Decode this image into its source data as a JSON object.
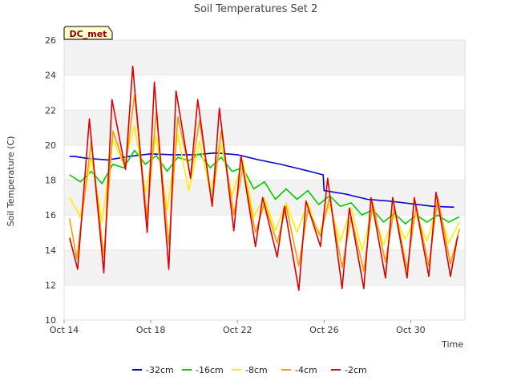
{
  "chart_data": {
    "type": "line",
    "title": "Soil Temperatures Set 2",
    "xlabel": "Time",
    "ylabel": "Soil Temperature (C)",
    "badge": "DC_met",
    "ylim": [
      10,
      26
    ],
    "xlim": [
      "2023-10-14",
      "2023-11-01T12:00"
    ],
    "y_ticks": [
      "10",
      "12",
      "14",
      "16",
      "18",
      "20",
      "22",
      "24",
      "26"
    ],
    "x_ticks": [
      {
        "date": "2023-10-14",
        "label": "Oct 14"
      },
      {
        "date": "2023-10-18",
        "label": "Oct 18"
      },
      {
        "date": "2023-10-22",
        "label": "Oct 22"
      },
      {
        "date": "2023-10-26",
        "label": "Oct 26"
      },
      {
        "date": "2023-10-30",
        "label": "Oct 30"
      }
    ],
    "legend_position": "bottom",
    "background_bands": true,
    "series": [
      {
        "name": "-32cm",
        "color": "#0000cc",
        "x": [
          "2023-10-14T06:00",
          "2023-10-14T12:00",
          "2023-10-15",
          "2023-10-16",
          "2023-10-17",
          "2023-10-18",
          "2023-10-19",
          "2023-10-20",
          "2023-10-21",
          "2023-10-22",
          "2023-10-23",
          "2023-10-24",
          "2023-10-25",
          "2023-10-25T23:00",
          "2023-10-26",
          "2023-10-27",
          "2023-10-28",
          "2023-10-29",
          "2023-10-30",
          "2023-10-31",
          "2023-11-01"
        ],
        "values": [
          19.35,
          19.35,
          19.25,
          19.15,
          19.35,
          19.5,
          19.45,
          19.45,
          19.55,
          19.45,
          19.15,
          18.9,
          18.6,
          18.3,
          17.4,
          17.2,
          16.9,
          16.8,
          16.65,
          16.5,
          16.45
        ]
      },
      {
        "name": "-16cm",
        "color": "#00cc00",
        "x": [
          "2023-10-14T06:00",
          "2023-10-14T18:00",
          "2023-10-15T06:00",
          "2023-10-15T18:00",
          "2023-10-16T06:00",
          "2023-10-16T18:00",
          "2023-10-17T06:00",
          "2023-10-17T18:00",
          "2023-10-18T06:00",
          "2023-10-18T18:00",
          "2023-10-19T06:00",
          "2023-10-19T18:00",
          "2023-10-20T06:00",
          "2023-10-20T18:00",
          "2023-10-21T06:00",
          "2023-10-21T18:00",
          "2023-10-22T06:00",
          "2023-10-22T18:00",
          "2023-10-23T06:00",
          "2023-10-23T18:00",
          "2023-10-24T06:00",
          "2023-10-24T18:00",
          "2023-10-25T06:00",
          "2023-10-25T18:00",
          "2023-10-26T06:00",
          "2023-10-26T18:00",
          "2023-10-27T06:00",
          "2023-10-27T18:00",
          "2023-10-28T06:00",
          "2023-10-28T18:00",
          "2023-10-29T06:00",
          "2023-10-29T18:00",
          "2023-10-30T06:00",
          "2023-10-30T18:00",
          "2023-10-31T06:00",
          "2023-10-31T18:00",
          "2023-11-01T06:00"
        ],
        "values": [
          18.3,
          17.9,
          18.5,
          17.8,
          18.9,
          18.7,
          19.7,
          18.9,
          19.4,
          18.5,
          19.3,
          19.1,
          19.5,
          18.7,
          19.3,
          18.5,
          18.7,
          17.5,
          17.9,
          16.9,
          17.5,
          16.9,
          17.4,
          16.6,
          17.1,
          16.5,
          16.7,
          16.0,
          16.3,
          15.6,
          16.1,
          15.5,
          16.0,
          15.6,
          16.0,
          15.6,
          15.9
        ]
      },
      {
        "name": "-8cm",
        "color": "#ffee00",
        "x": [
          "2023-10-14T06:00",
          "2023-10-14T18:00",
          "2023-10-15T06:00",
          "2023-10-15T18:00",
          "2023-10-16T06:00",
          "2023-10-16T18:00",
          "2023-10-17T06:00",
          "2023-10-17T18:00",
          "2023-10-18T06:00",
          "2023-10-18T18:00",
          "2023-10-19T06:00",
          "2023-10-19T18:00",
          "2023-10-20T06:00",
          "2023-10-20T18:00",
          "2023-10-21T06:00",
          "2023-10-21T18:00",
          "2023-10-22T06:00",
          "2023-10-22T18:00",
          "2023-10-23T06:00",
          "2023-10-23T18:00",
          "2023-10-24T06:00",
          "2023-10-24T18:00",
          "2023-10-25T06:00",
          "2023-10-25T18:00",
          "2023-10-26T06:00",
          "2023-10-26T18:00",
          "2023-10-27T06:00",
          "2023-10-27T18:00",
          "2023-10-28T06:00",
          "2023-10-28T18:00",
          "2023-10-29T06:00",
          "2023-10-29T18:00",
          "2023-10-30T06:00",
          "2023-10-30T18:00",
          "2023-10-31T06:00",
          "2023-10-31T18:00",
          "2023-11-01T06:00"
        ],
        "values": [
          17.0,
          15.9,
          19.3,
          15.6,
          20.3,
          18.9,
          21.1,
          17.3,
          20.5,
          16.3,
          20.6,
          17.4,
          20.2,
          17.3,
          20.0,
          17.1,
          19.1,
          15.9,
          17.0,
          15.1,
          16.7,
          15.0,
          16.7,
          14.9,
          16.6,
          14.5,
          16.4,
          14.0,
          16.3,
          14.3,
          16.0,
          14.6,
          16.0,
          14.5,
          16.6,
          14.4,
          15.6
        ]
      },
      {
        "name": "-4cm",
        "color": "#ff9900",
        "x": [
          "2023-10-14T06:00",
          "2023-10-14T14:00",
          "2023-10-15T06:00",
          "2023-10-15T20:00",
          "2023-10-16T06:00",
          "2023-10-16T20:00",
          "2023-10-17T06:00",
          "2023-10-17T20:00",
          "2023-10-18T06:00",
          "2023-10-18T20:00",
          "2023-10-19T06:00",
          "2023-10-19T20:00",
          "2023-10-20T06:00",
          "2023-10-20T20:00",
          "2023-10-21T06:00",
          "2023-10-21T20:00",
          "2023-10-22T06:00",
          "2023-10-22T20:00",
          "2023-10-23T06:00",
          "2023-10-23T20:00",
          "2023-10-24T06:00",
          "2023-10-24T20:00",
          "2023-10-25T06:00",
          "2023-10-25T20:00",
          "2023-10-26T06:00",
          "2023-10-26T20:00",
          "2023-10-27T06:00",
          "2023-10-27T20:00",
          "2023-10-28T06:00",
          "2023-10-28T20:00",
          "2023-10-29T06:00",
          "2023-10-29T20:00",
          "2023-10-30T06:00",
          "2023-10-30T20:00",
          "2023-10-31T06:00",
          "2023-10-31T20:00",
          "2023-11-01T06:00"
        ],
        "values": [
          15.8,
          13.5,
          20.2,
          13.6,
          20.8,
          18.7,
          22.9,
          15.8,
          21.9,
          14.3,
          21.6,
          18.2,
          21.4,
          16.7,
          20.8,
          16.0,
          18.7,
          15.0,
          16.7,
          14.4,
          16.5,
          13.1,
          16.3,
          14.8,
          17.0,
          13.0,
          15.9,
          12.8,
          16.7,
          13.3,
          16.5,
          12.9,
          16.5,
          13.1,
          17.0,
          13.2,
          15.2
        ]
      },
      {
        "name": "-2cm",
        "color": "#dd0000",
        "x": [
          "2023-10-14T06:00",
          "2023-10-14T15:00",
          "2023-10-15T04:00",
          "2023-10-15T20:00",
          "2023-10-16T05:00",
          "2023-10-16T20:00",
          "2023-10-17T04:00",
          "2023-10-17T20:00",
          "2023-10-18T04:00",
          "2023-10-18T20:00",
          "2023-10-19T04:00",
          "2023-10-19T20:00",
          "2023-10-20T04:00",
          "2023-10-20T20:00",
          "2023-10-21T04:00",
          "2023-10-21T20:00",
          "2023-10-22T04:00",
          "2023-10-22T20:00",
          "2023-10-23T04:00",
          "2023-10-23T20:00",
          "2023-10-24T04:00",
          "2023-10-24T20:00",
          "2023-10-25T04:00",
          "2023-10-25T20:00",
          "2023-10-26T04:00",
          "2023-10-26T20:00",
          "2023-10-27T04:00",
          "2023-10-27T20:00",
          "2023-10-28T04:00",
          "2023-10-28T20:00",
          "2023-10-29T04:00",
          "2023-10-29T20:00",
          "2023-10-30T04:00",
          "2023-10-30T20:00",
          "2023-10-31T04:00",
          "2023-10-31T20:00",
          "2023-11-01T04:00"
        ],
        "values": [
          14.7,
          12.9,
          21.5,
          12.7,
          22.6,
          18.6,
          24.5,
          15.0,
          23.6,
          12.9,
          23.1,
          18.1,
          22.6,
          16.5,
          22.1,
          15.1,
          19.4,
          14.2,
          17.0,
          13.6,
          16.5,
          11.7,
          16.8,
          14.2,
          18.1,
          11.8,
          16.4,
          11.8,
          17.0,
          12.4,
          17.0,
          12.4,
          17.0,
          12.5,
          17.3,
          12.5,
          14.8
        ]
      }
    ]
  }
}
